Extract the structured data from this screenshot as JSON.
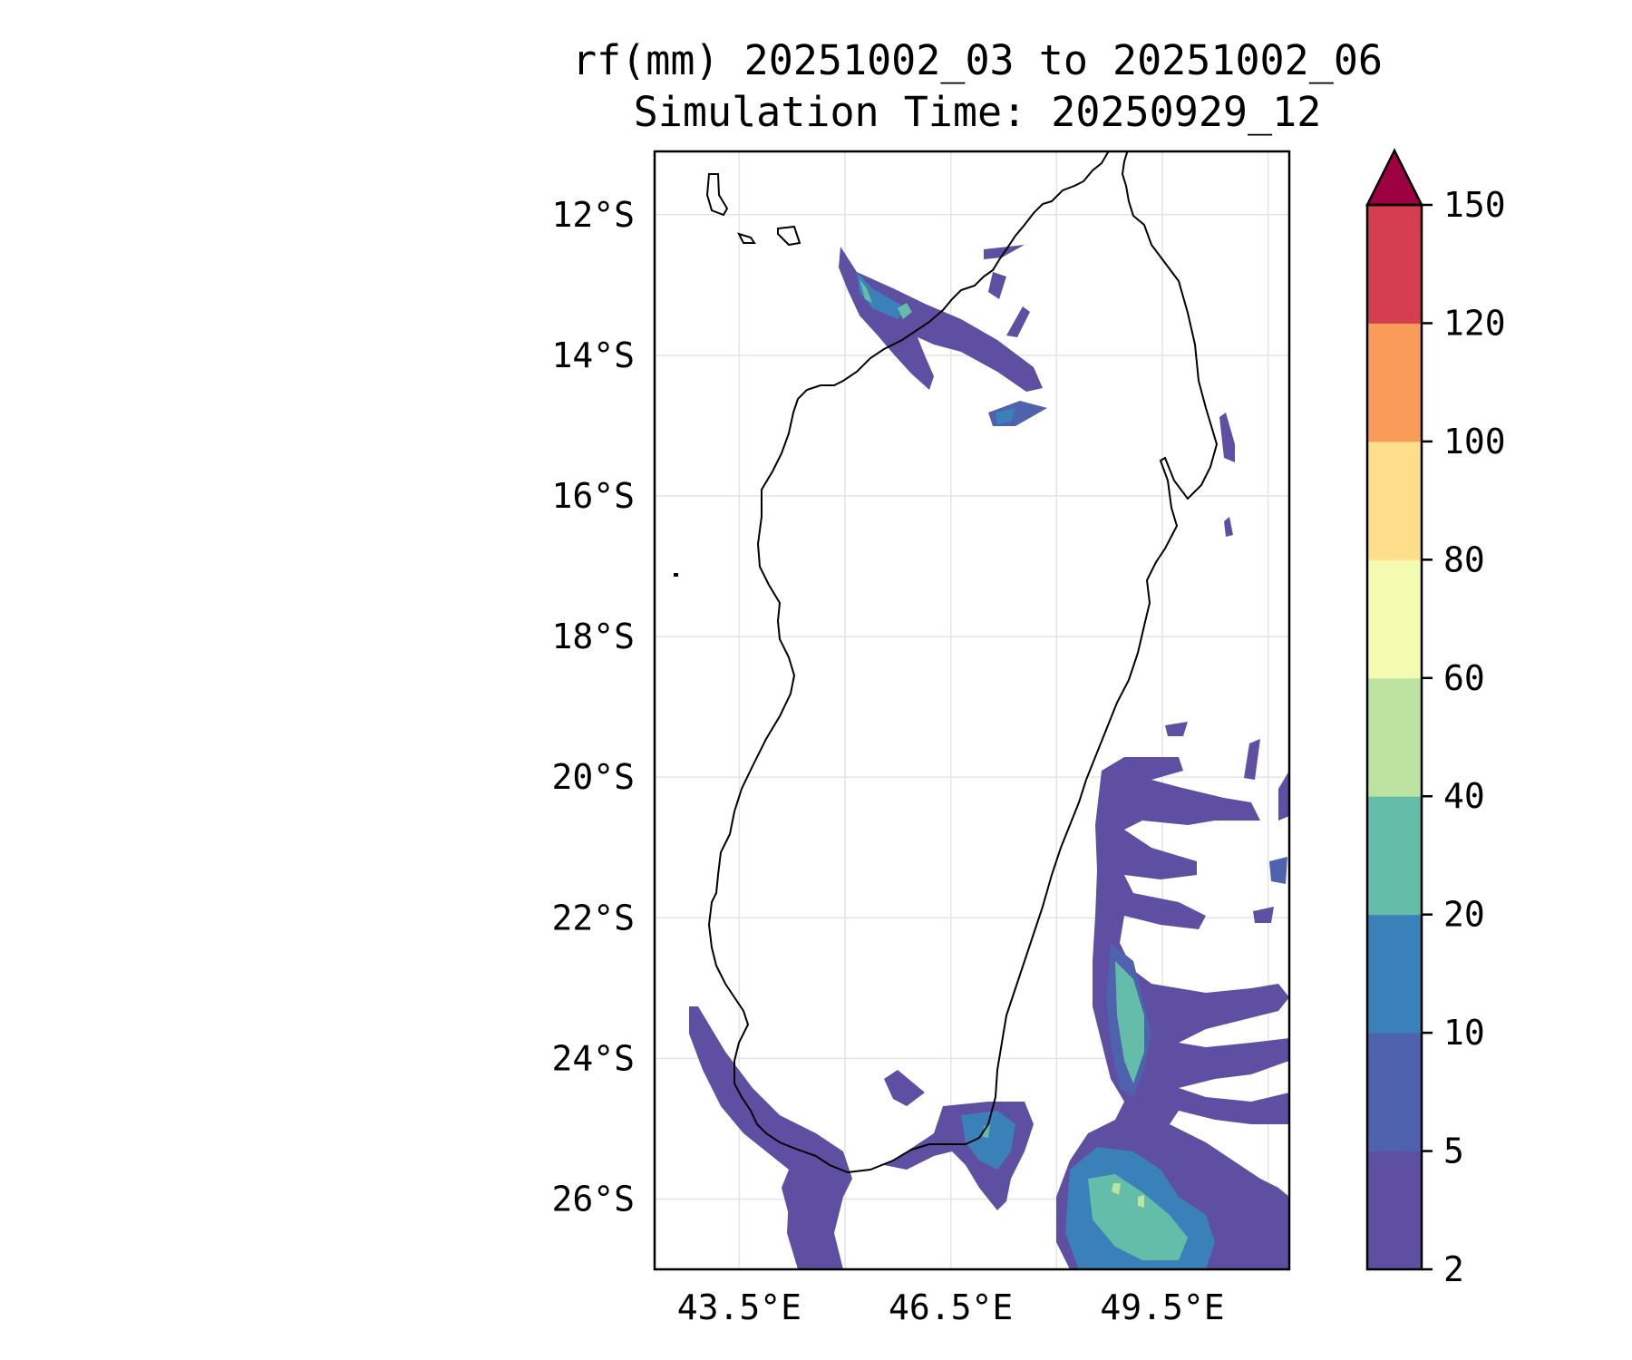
{
  "title": {
    "line1": "rf(mm) 20251002_03 to 20251002_06",
    "line2": "Simulation Time: 20250929_12"
  },
  "map": {
    "variable": "rf",
    "units": "mm",
    "lon_range": [
      42.3,
      51.3
    ],
    "lat_range": [
      -27,
      -11.1
    ],
    "lat_ticks": [
      {
        "value": -12,
        "label": "12°S"
      },
      {
        "value": -14,
        "label": "14°S"
      },
      {
        "value": -16,
        "label": "16°S"
      },
      {
        "value": -18,
        "label": "18°S"
      },
      {
        "value": -20,
        "label": "20°S"
      },
      {
        "value": -22,
        "label": "22°S"
      },
      {
        "value": -24,
        "label": "24°S"
      },
      {
        "value": -26,
        "label": "26°S"
      }
    ],
    "lon_ticks": [
      {
        "value": 43.5,
        "label": "43.5°E"
      },
      {
        "value": 46.5,
        "label": "46.5°E"
      },
      {
        "value": 49.5,
        "label": "49.5°E"
      }
    ],
    "grid": true,
    "gridline_lons": [
      43.5,
      45,
      46.5,
      48,
      49.5,
      51
    ]
  },
  "colorbar": {
    "levels": [
      2,
      5,
      10,
      20,
      40,
      60,
      80,
      100,
      120,
      150
    ],
    "tick_labels": [
      "2",
      "5",
      "10",
      "20",
      "40",
      "60",
      "80",
      "100",
      "120",
      "150"
    ],
    "colors": [
      "#5e4fa2",
      "#4f62ad",
      "#3a80b9",
      "#63bda9",
      "#bde3a1",
      "#f4fbb0",
      "#fddf8b",
      "#f99c5a",
      "#d53e4f"
    ],
    "extend_color": "#9e0142",
    "extend": "max"
  },
  "colors": {
    "coastline": "#000000",
    "grid": "#e4e4e4",
    "frame": "#000000"
  }
}
